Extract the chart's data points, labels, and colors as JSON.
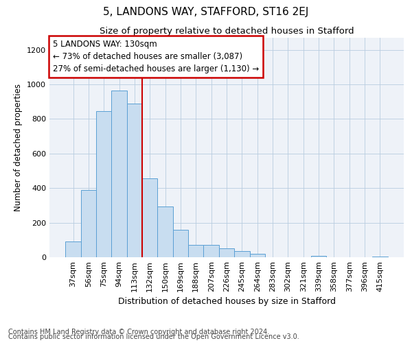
{
  "title": "5, LANDONS WAY, STAFFORD, ST16 2EJ",
  "subtitle": "Size of property relative to detached houses in Stafford",
  "xlabel": "Distribution of detached houses by size in Stafford",
  "ylabel": "Number of detached properties",
  "categories": [
    "37sqm",
    "56sqm",
    "75sqm",
    "94sqm",
    "113sqm",
    "132sqm",
    "150sqm",
    "169sqm",
    "188sqm",
    "207sqm",
    "226sqm",
    "245sqm",
    "264sqm",
    "283sqm",
    "302sqm",
    "321sqm",
    "339sqm",
    "358sqm",
    "377sqm",
    "396sqm",
    "415sqm"
  ],
  "values": [
    90,
    390,
    845,
    965,
    890,
    455,
    295,
    160,
    70,
    70,
    50,
    35,
    20,
    0,
    0,
    0,
    7,
    0,
    0,
    0,
    5
  ],
  "bar_color": "#c8ddf0",
  "bar_edge_color": "#5a9fd4",
  "red_line_index": 5,
  "annotation_line1": "5 LANDONS WAY: 130sqm",
  "annotation_line2": "← 73% of detached houses are smaller (3,087)",
  "annotation_line3": "27% of semi-detached houses are larger (1,130) →",
  "annotation_box_color": "#ffffff",
  "annotation_edge_color": "#cc0000",
  "footer_line1": "Contains HM Land Registry data © Crown copyright and database right 2024.",
  "footer_line2": "Contains public sector information licensed under the Open Government Licence v3.0.",
  "ylim_max": 1270,
  "yticks": [
    0,
    200,
    400,
    600,
    800,
    1000,
    1200
  ],
  "title_fontsize": 11,
  "subtitle_fontsize": 9.5,
  "xlabel_fontsize": 9,
  "ylabel_fontsize": 8.5,
  "tick_fontsize": 8,
  "annotation_fontsize": 8.5,
  "footer_fontsize": 7,
  "background_color": "#ffffff",
  "plot_bg_color": "#eef2f8"
}
